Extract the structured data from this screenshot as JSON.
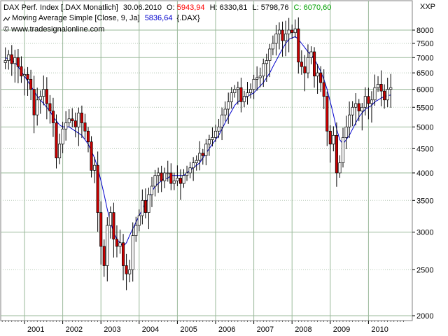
{
  "header": {
    "line1_prefix": "DAX Perf. Index [.DAX  Monatlich]",
    "date": "30.06.2010",
    "open_label": "O:",
    "open_value": "5943,94",
    "high_label": "H:",
    "high_value": "6330,81",
    "low_label": "L:",
    "low_value": "5798,76",
    "close_label": "C:",
    "close_value": "6070,60",
    "ma_label": "Moving Average Simple [Close, 9, Ja]",
    "ma_value": "5836,64",
    "ma_symbol": "{.DAX}",
    "copyright": "© www.tradesignalonline.com",
    "axis_unit": "XXP",
    "colors": {
      "open": "#ff0000",
      "high": "#000000",
      "low": "#000000",
      "close": "#00a000",
      "ma_value": "#0000cc"
    }
  },
  "chart_data": {
    "type": "candlestick",
    "y_scale": "log",
    "ylim": [
      2000,
      8500
    ],
    "y_ticks": [
      2000,
      2500,
      3000,
      3500,
      4000,
      4500,
      5000,
      5500,
      6000,
      6500,
      7000,
      7500,
      8000
    ],
    "y_tick_labels": [
      "2000",
      "2500",
      "3000",
      "3500",
      "4000",
      "4500",
      "5000",
      "5500",
      "6000",
      "6500",
      "7000",
      "7500",
      "8000"
    ],
    "x_labels": [
      "2001",
      "2002",
      "2003",
      "2004",
      "2005",
      "2006",
      "2007",
      "2008",
      "2009",
      "2010"
    ],
    "grid": true,
    "colors": {
      "up": "#ffffff",
      "down": "#cc0000",
      "wick": "#000000",
      "ma": "#0000cc",
      "grid": "#9ab89a"
    },
    "series": [
      {
        "type": "candles",
        "start": "2000-07",
        "close": [
          6900,
          7100,
          6800,
          7000,
          6700,
          6400,
          6450,
          6300,
          6000,
          5300,
          5700,
          5800,
          6000,
          5600,
          5400,
          5100,
          4300,
          4600,
          4950,
          5100,
          5200,
          5150,
          5000,
          5350,
          5100,
          4900,
          4650,
          4050,
          4150,
          3300,
          2800,
          2550,
          3100,
          3300,
          2900,
          2800,
          2850,
          2550,
          2450,
          2500,
          2950,
          3100,
          3250,
          3500,
          3300,
          3600,
          3750,
          3950,
          4000,
          3850,
          4000,
          4000,
          3800,
          3850,
          3900,
          3800,
          3950,
          4000,
          4100,
          4200,
          4250,
          4400,
          4350,
          4600,
          4700,
          4750,
          4900,
          5000,
          5300,
          5450,
          5650,
          5900,
          6000,
          6050,
          5650,
          5800,
          5900,
          6000,
          6300,
          6350,
          6400,
          6800,
          6900,
          7300,
          7500,
          7850,
          8000,
          7600,
          7850,
          8000,
          7900,
          8050,
          6850,
          6700,
          6500,
          7000,
          7200,
          6400,
          6500,
          6200,
          5800,
          4900,
          4600,
          4800,
          4000,
          4200,
          4750,
          5000,
          5300,
          5500,
          5600,
          5400,
          5500,
          5800,
          5600,
          5700,
          6050,
          6150,
          5950,
          5700,
          6000,
          6050
        ]
      },
      {
        "type": "line",
        "name": "Moving Average Simple [Close, 9, Ja]",
        "values_start": "2000-07",
        "values": [
          7000,
          6950,
          6900,
          6850,
          6700,
          6550,
          6400,
          6250,
          6100,
          5950,
          5800,
          5700,
          5600,
          5500,
          5400,
          5250,
          5150,
          5050,
          5000,
          5000,
          5000,
          4950,
          4900,
          4850,
          4800,
          4700,
          4600,
          4450,
          4300,
          4100,
          3850,
          3600,
          3350,
          3150,
          3000,
          2900,
          2850,
          2800,
          2850,
          2950,
          3050,
          3150,
          3250,
          3350,
          3450,
          3550,
          3650,
          3750,
          3800,
          3850,
          3900,
          3900,
          3950,
          3950,
          3950,
          3950,
          3950,
          4000,
          4050,
          4100,
          4150,
          4200,
          4300,
          4400,
          4500,
          4600,
          4700,
          4800,
          4950,
          5100,
          5250,
          5400,
          5550,
          5650,
          5700,
          5750,
          5800,
          5850,
          5900,
          6000,
          6100,
          6200,
          6350,
          6500,
          6700,
          6900,
          7100,
          7300,
          7500,
          7650,
          7700,
          7750,
          7650,
          7500,
          7350,
          7200,
          7100,
          6950,
          6750,
          6550,
          6300,
          6000,
          5650,
          5300,
          4950,
          4700,
          4600,
          4700,
          4800,
          4950,
          5100,
          5250,
          5350,
          5450,
          5500,
          5550,
          5650,
          5700,
          5750,
          5800,
          5820,
          5836
        ]
      }
    ]
  }
}
